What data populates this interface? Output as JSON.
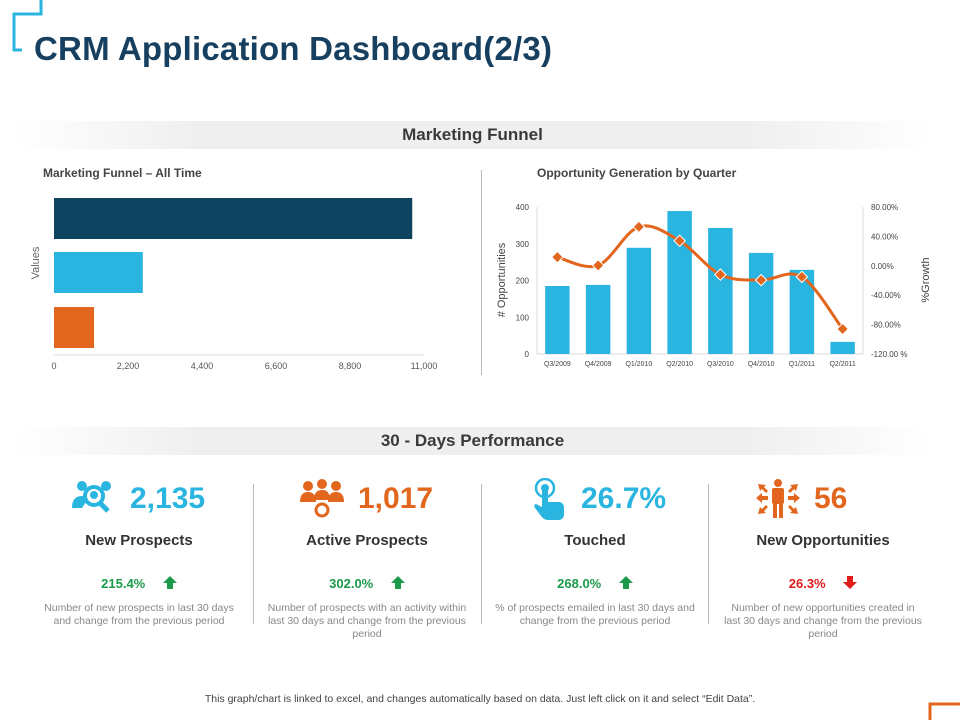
{
  "title": "CRM Application Dashboard(2/3)",
  "colors": {
    "title": "#173f5f",
    "accent_blue": "#29b5e0",
    "accent_orange": "#e2661e",
    "dark_blue": "#0f4461",
    "up_green": "#1a9a4a",
    "down_red": "#e01b1b"
  },
  "marketing_funnel": {
    "band_label": "Marketing Funnel"
  },
  "performance": {
    "band_label": "30 - Days Performance",
    "kpis": [
      {
        "icon": "prospects-search-icon",
        "value": "2,135",
        "label": "New Prospects",
        "change": "215.4%",
        "direction": "up",
        "description": "Number of new prospects in last 30 days and change from the previous period",
        "color": "#29b5e0"
      },
      {
        "icon": "team-gear-icon",
        "value": "1,017",
        "label": "Active Prospects",
        "change": "302.0%",
        "direction": "up",
        "description": "Number of prospects with an activity within last 30 days and change from the previous period",
        "color": "#e2661e"
      },
      {
        "icon": "touch-hand-icon",
        "value": "26.7%",
        "label": "Touched",
        "change": "268.0%",
        "direction": "up",
        "description": "% of prospects emailed in last 30 days and change from the previous period",
        "color": "#29b5e0"
      },
      {
        "icon": "person-arrows-icon",
        "value": "56",
        "label": "New Opportunities",
        "change": "26.3%",
        "direction": "down",
        "description": "Number of new opportunities created in last 30 days and change from the previous period",
        "color": "#e2661e"
      }
    ]
  },
  "footer": "This graph/chart is linked to excel, and changes automatically based on data. Just left click on it and select “Edit Data”.",
  "chart_data": [
    {
      "type": "bar",
      "orientation": "horizontal",
      "title": "Marketing Funnel – All Time",
      "ylabel": "Values",
      "xlabel": "",
      "values": [
        10650,
        2640,
        1190
      ],
      "colors": [
        "#0f4461",
        "#29b5e0",
        "#e2661e"
      ],
      "xlim": [
        0,
        11000
      ],
      "xticks": [
        "0",
        "2,200",
        "4,400",
        "6,600",
        "8,800",
        "11,000"
      ],
      "grid": false
    },
    {
      "type": "bar+line",
      "title": "Opportunity  Generation by Quarter",
      "ylabel": "# Opportunities",
      "y2label": "%Growth",
      "categories": [
        "Q3/2009",
        "Q4/2009",
        "Q1/2010",
        "Q2/2010",
        "Q3/2010",
        "Q4/2010",
        "Q1/2011",
        "Q2/2011"
      ],
      "bars": [
        185,
        188,
        289,
        389,
        343,
        275,
        229,
        33
      ],
      "line": [
        11.8,
        0.5,
        53,
        34,
        -12,
        -19.5,
        -15,
        -86
      ],
      "ylim": [
        0,
        400
      ],
      "yticks": [
        "0",
        "100",
        "200",
        "300",
        "400"
      ],
      "y2lim": [
        -120,
        80
      ],
      "y2ticks": [
        "80.00%",
        "40.00%",
        "0.00%",
        "-40.00%",
        "-80.00%",
        "-120.00 %"
      ],
      "bar_color": "#29b5e0",
      "line_color": "#e2661e",
      "grid": false
    }
  ]
}
